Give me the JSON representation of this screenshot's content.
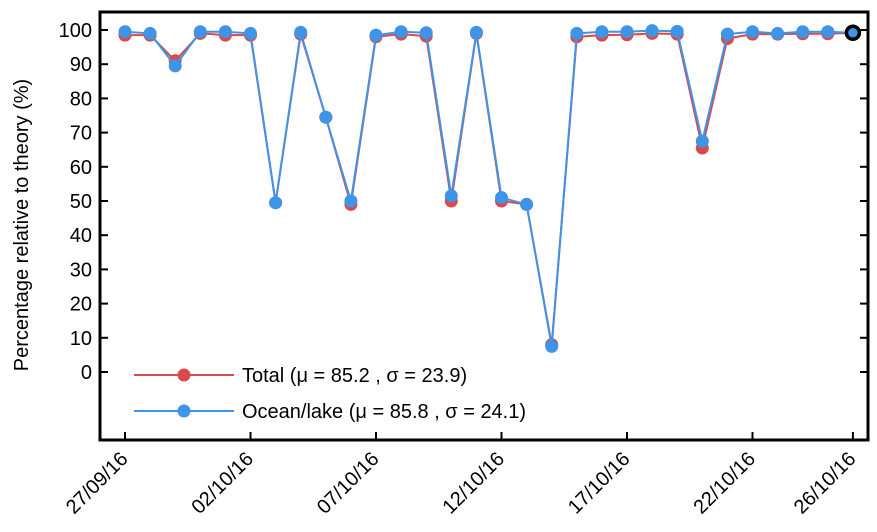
{
  "chart_data": {
    "type": "line",
    "ylabel": "Percentage relative to theory (%)",
    "xlabel": "",
    "xlim": [
      "27/09/16",
      "26/10/16"
    ],
    "ylim": [
      -20,
      100
    ],
    "yticks": [
      0,
      10,
      20,
      30,
      40,
      50,
      60,
      70,
      80,
      90,
      100
    ],
    "xticks": [
      "27/09/16",
      "02/10/16",
      "07/10/16",
      "12/10/16",
      "17/10/16",
      "22/10/16",
      "26/10/16"
    ],
    "grid": false,
    "legend_position": "bottom-left",
    "x": [
      "27/09/16",
      "28/09/16",
      "29/09/16",
      "30/09/16",
      "01/10/16",
      "02/10/16",
      "03/10/16",
      "04/10/16",
      "05/10/16",
      "06/10/16",
      "07/10/16",
      "08/10/16",
      "09/10/16",
      "10/10/16",
      "11/10/16",
      "12/10/16",
      "13/10/16",
      "14/10/16",
      "15/10/16",
      "16/10/16",
      "17/10/16",
      "18/10/16",
      "19/10/16",
      "20/10/16",
      "21/10/16",
      "22/10/16",
      "23/10/16",
      "24/10/16",
      "25/10/16",
      "26/10/16"
    ],
    "series": [
      {
        "name": "Total",
        "legend_label": "Total (μ = 85.2 , σ = 23.9)",
        "color": "#d94a4a",
        "values": [
          98.5,
          98.5,
          91,
          99,
          98.5,
          98.5,
          49.5,
          98.8,
          74.5,
          49,
          98,
          98.8,
          98.2,
          50,
          99,
          50,
          49,
          8,
          98,
          98.5,
          98.6,
          99,
          98.8,
          65.5,
          97.5,
          98.8,
          98.8,
          98.9,
          98.9,
          99.2
        ]
      },
      {
        "name": "Ocean/lake",
        "legend_label": "Ocean/lake (μ = 85.8 , σ = 24.1)",
        "color": "#3e94e6",
        "values": [
          99.5,
          99,
          89.5,
          99.5,
          99.5,
          99,
          49.5,
          99.3,
          74.5,
          50,
          98.5,
          99.5,
          99.2,
          51.5,
          99.3,
          51,
          49,
          7.5,
          99,
          99.5,
          99.5,
          99.8,
          99.6,
          67.5,
          98.8,
          99.5,
          99,
          99.5,
          99.5,
          99.2
        ]
      }
    ],
    "last_point_marker_color": "#000000"
  }
}
